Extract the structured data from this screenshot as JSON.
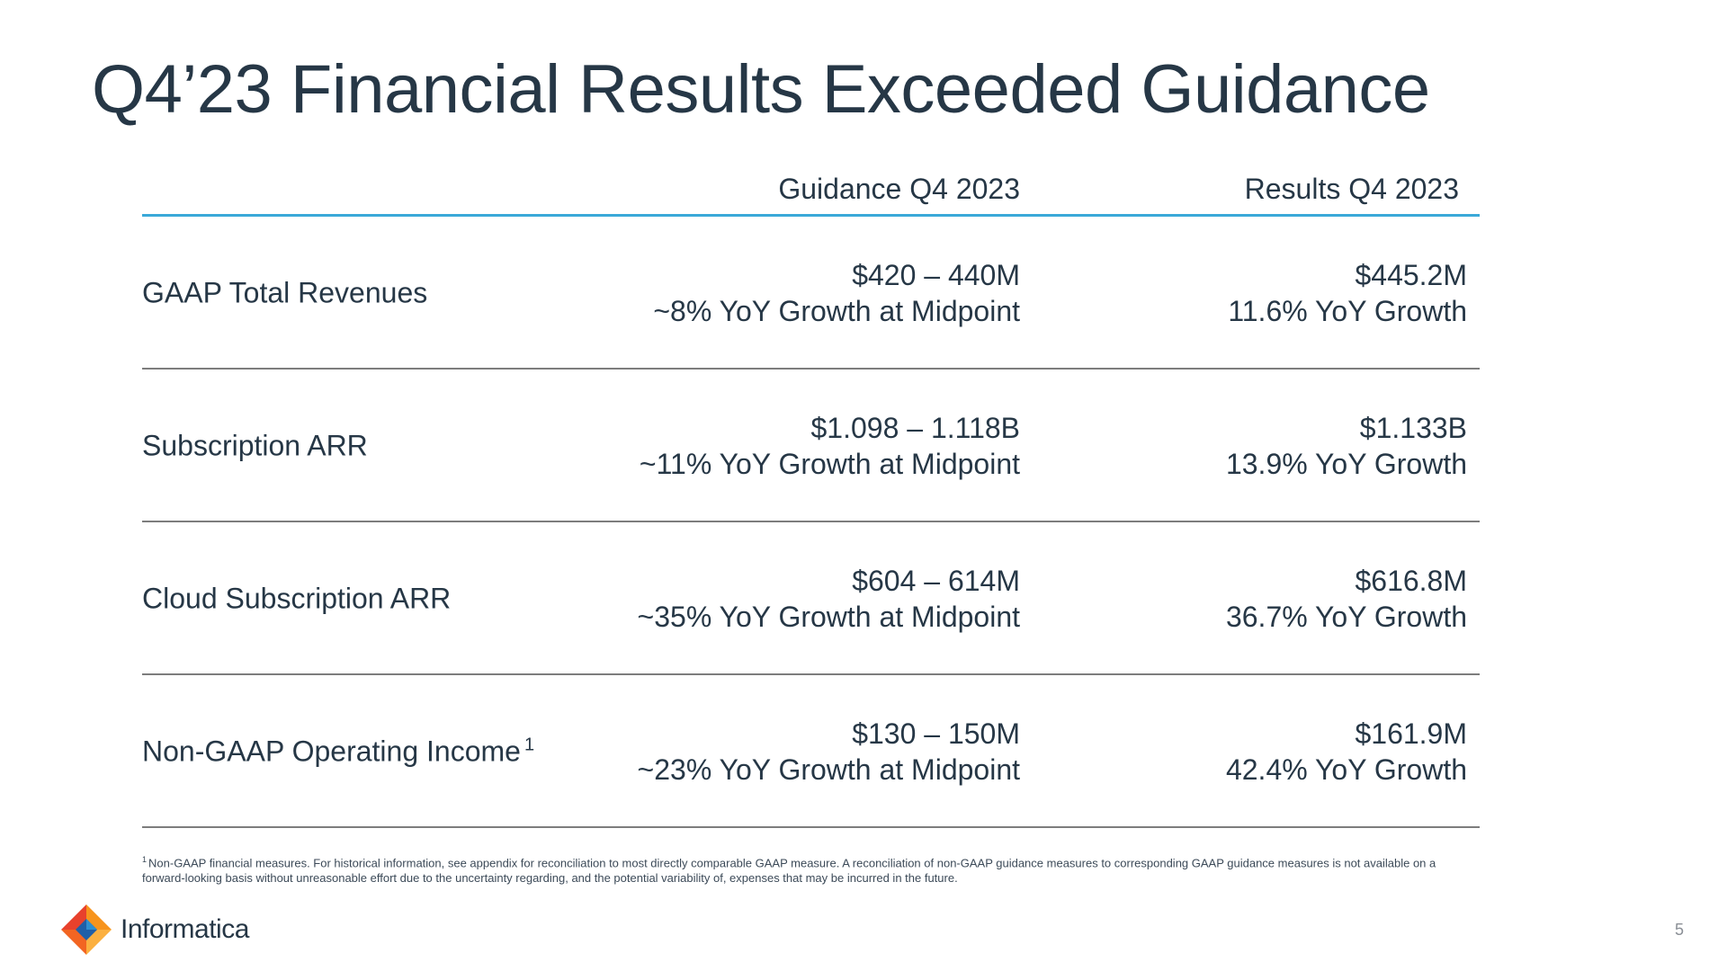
{
  "slide": {
    "title": "Q4’23 Financial Results Exceeded Guidance",
    "page_number": "5"
  },
  "table": {
    "headers": {
      "guidance": "Guidance Q4 2023",
      "results": "Results Q4 2023"
    },
    "rows": [
      {
        "label": "GAAP Total Revenues",
        "footnote_marker": "",
        "guidance_line1": "$420 – 440M",
        "guidance_line2": "~8% YoY Growth at Midpoint",
        "results_line1": "$445.2M",
        "results_line2": "11.6% YoY Growth"
      },
      {
        "label": "Subscription ARR",
        "footnote_marker": "",
        "guidance_line1": "$1.098 – 1.118B",
        "guidance_line2": "~11% YoY Growth at Midpoint",
        "results_line1": "$1.133B",
        "results_line2": "13.9% YoY Growth"
      },
      {
        "label": "Cloud Subscription ARR",
        "footnote_marker": "",
        "guidance_line1": "$604 – 614M",
        "guidance_line2": "~35% YoY Growth at Midpoint",
        "results_line1": "$616.8M",
        "results_line2": "36.7% YoY Growth"
      },
      {
        "label": "Non-GAAP Operating Income",
        "footnote_marker": "1",
        "guidance_line1": "$130 – 150M",
        "guidance_line2": "~23% YoY Growth at Midpoint",
        "results_line1": "$161.9M",
        "results_line2": "42.4% YoY Growth"
      }
    ]
  },
  "footnote": {
    "marker": "1",
    "text": "Non-GAAP financial measures. For historical information, see appendix for reconciliation to most directly comparable GAAP measure. A reconciliation of non-GAAP guidance measures to corresponding GAAP guidance measures is not available on a forward-looking basis without unreasonable effort due to the uncertainty regarding, and the potential variability of, expenses that may be incurred in the future."
  },
  "brand": {
    "name": "Informatica",
    "icon": "informatica-logo-icon",
    "colors": {
      "title": "#263746",
      "header_rule": "#3aa9d8",
      "row_rule": "#7d7d7d",
      "logo_orange": "#f7941d",
      "logo_red": "#e8412c",
      "logo_blue": "#1f5fa8"
    }
  }
}
